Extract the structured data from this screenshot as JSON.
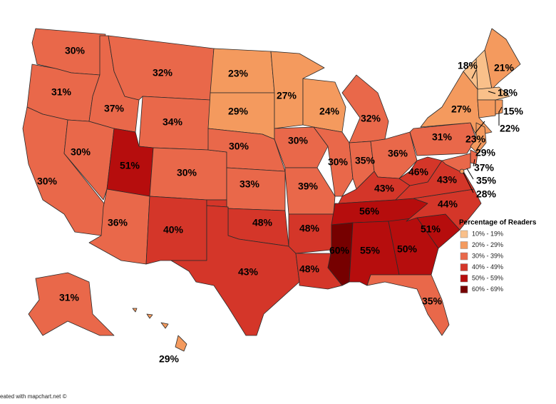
{
  "map": {
    "legend": {
      "title": "Percentage of Readers",
      "bins": [
        {
          "min": 10,
          "max": 19,
          "label": "10% - 19%",
          "color": "#f9c08a"
        },
        {
          "min": 20,
          "max": 29,
          "label": "20% - 29%",
          "color": "#f49a5e"
        },
        {
          "min": 30,
          "max": 39,
          "label": "30% - 39%",
          "color": "#e9684a"
        },
        {
          "min": 40,
          "max": 49,
          "label": "40% - 49%",
          "color": "#d43629"
        },
        {
          "min": 50,
          "max": 59,
          "label": "50% - 59%",
          "color": "#b60d0d"
        },
        {
          "min": 60,
          "max": 69,
          "label": "60% - 69%",
          "color": "#760000"
        }
      ]
    },
    "regions": [
      {
        "value": 30,
        "label": "30%"
      },
      {
        "value": 31,
        "label": "31%"
      },
      {
        "value": 30,
        "label": "30%"
      },
      {
        "value": 30,
        "label": "30%"
      },
      {
        "value": 37,
        "label": "37%"
      },
      {
        "value": 32,
        "label": "32%"
      },
      {
        "value": 34,
        "label": "34%"
      },
      {
        "value": 51,
        "label": "51%"
      },
      {
        "value": 30,
        "label": "30%"
      },
      {
        "value": 36,
        "label": "36%"
      },
      {
        "value": 40,
        "label": "40%"
      },
      {
        "value": 23,
        "label": "23%"
      },
      {
        "value": 29,
        "label": "29%"
      },
      {
        "value": 30,
        "label": "30%"
      },
      {
        "value": 33,
        "label": "33%"
      },
      {
        "value": 48,
        "label": "48%"
      },
      {
        "value": 43,
        "label": "43%"
      },
      {
        "value": 27,
        "label": "27%"
      },
      {
        "value": 30,
        "label": "30%"
      },
      {
        "value": 39,
        "label": "39%"
      },
      {
        "value": 48,
        "label": "48%"
      },
      {
        "value": 48,
        "label": "48%"
      },
      {
        "value": 24,
        "label": "24%"
      },
      {
        "value": 30,
        "label": "30%"
      },
      {
        "value": 32,
        "label": "32%"
      },
      {
        "value": 35,
        "label": "35%"
      },
      {
        "value": 36,
        "label": "36%"
      },
      {
        "value": 43,
        "label": "43%"
      },
      {
        "value": 56,
        "label": "56%"
      },
      {
        "value": 60,
        "label": "60%"
      },
      {
        "value": 55,
        "label": "55%"
      },
      {
        "value": 50,
        "label": "50%"
      },
      {
        "value": 35,
        "label": "35%"
      },
      {
        "value": 51,
        "label": "51%"
      },
      {
        "value": 44,
        "label": "44%"
      },
      {
        "value": 43,
        "label": "43%"
      },
      {
        "value": 46,
        "label": "46%"
      },
      {
        "value": 31,
        "label": "31%"
      },
      {
        "value": 27,
        "label": "27%"
      },
      {
        "value": 21,
        "label": "21%"
      },
      {
        "value": 18,
        "label": "18%"
      },
      {
        "value": 18,
        "label": "18%"
      },
      {
        "value": 15,
        "label": "15%"
      },
      {
        "value": 22,
        "label": "22%"
      },
      {
        "value": 23,
        "label": "23%"
      },
      {
        "value": 29,
        "label": "29%"
      },
      {
        "value": 37,
        "label": "37%"
      },
      {
        "value": 35,
        "label": "35%"
      },
      {
        "value": 28,
        "label": "28%"
      },
      {
        "value": 31,
        "label": "31%"
      },
      {
        "value": 29,
        "label": "29%"
      }
    ],
    "footer": "eated with mapchart.net ©"
  }
}
